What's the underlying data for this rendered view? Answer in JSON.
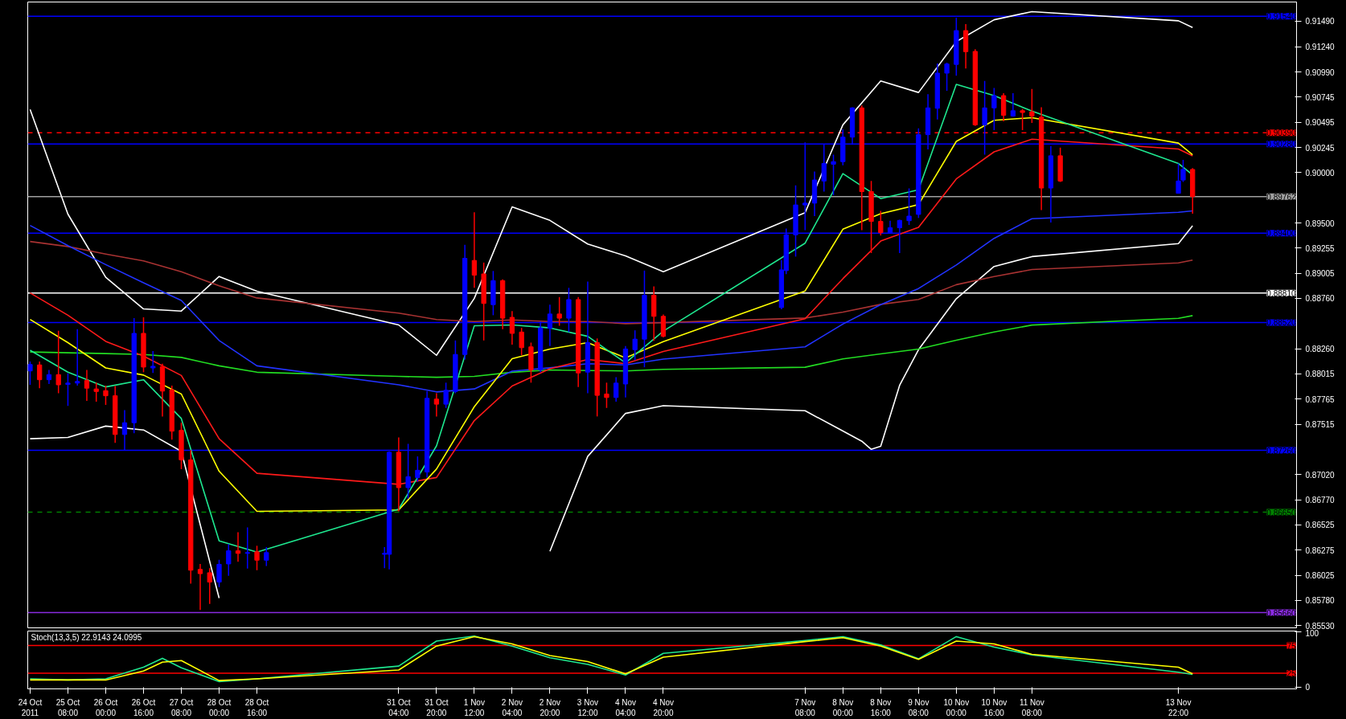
{
  "chart_data": [
    {
      "type": "candlestick",
      "x": [
        "2011-10-24T16:00",
        "2011-10-24T20:00",
        "2011-10-25T00:00",
        "2011-10-25T04:00",
        "2011-10-25T08:00",
        "2011-10-25T12:00",
        "2011-10-25T16:00",
        "2011-10-25T20:00",
        "2011-10-26T00:00",
        "2011-10-26T04:00",
        "2011-10-26T08:00",
        "2011-10-26T12:00",
        "2011-10-26T16:00",
        "2011-10-26T20:00",
        "2011-10-27T00:00",
        "2011-10-27T04:00",
        "2011-10-27T08:00",
        "2011-10-27T12:00",
        "2011-10-27T16:00",
        "2011-10-27T20:00",
        "2011-10-28T00:00",
        "2011-10-28T04:00",
        "2011-10-28T08:00",
        "2011-10-28T12:00",
        "2011-10-28T16:00",
        "2011-10-28T20:00",
        "2011-10-30T22:00",
        "2011-10-31T00:00",
        "2011-10-31T04:00",
        "2011-10-31T08:00",
        "2011-10-31T12:00",
        "2011-10-31T16:00",
        "2011-10-31T20:00",
        "2011-11-01T00:00",
        "2011-11-01T04:00",
        "2011-11-01T08:00",
        "2011-11-01T12:00",
        "2011-11-01T16:00",
        "2011-11-01T20:00",
        "2011-11-02T00:00",
        "2011-11-02T04:00",
        "2011-11-02T08:00",
        "2011-11-02T12:00",
        "2011-11-02T16:00",
        "2011-11-02T20:00",
        "2011-11-03T00:00",
        "2011-11-03T04:00",
        "2011-11-03T08:00",
        "2011-11-03T12:00",
        "2011-11-03T16:00",
        "2011-11-03T20:00",
        "2011-11-04T00:00",
        "2011-11-04T04:00",
        "2011-11-04T08:00",
        "2011-11-04T12:00",
        "2011-11-04T16:00",
        "2011-11-04T20:00",
        "2011-11-06T22:00",
        "2011-11-07T00:00",
        "2011-11-07T04:00",
        "2011-11-07T08:00",
        "2011-11-07T12:00",
        "2011-11-07T16:00",
        "2011-11-07T20:00",
        "2011-11-08T00:00",
        "2011-11-08T04:00",
        "2011-11-08T08:00",
        "2011-11-08T12:00",
        "2011-11-08T16:00",
        "2011-11-08T20:00",
        "2011-11-09T00:00",
        "2011-11-09T04:00",
        "2011-11-09T08:00",
        "2011-11-09T12:00",
        "2011-11-09T16:00",
        "2011-11-09T20:00",
        "2011-11-10T00:00",
        "2011-11-10T04:00",
        "2011-11-10T08:00",
        "2011-11-10T12:00",
        "2011-11-10T16:00",
        "2011-11-10T20:00",
        "2011-11-11T00:00",
        "2011-11-11T04:00",
        "2011-11-11T08:00",
        "2011-11-11T12:00",
        "2011-11-11T16:00",
        "2011-11-11T20:00",
        "2011-11-13T22:00",
        "2011-11-14T00:00",
        "2011-11-14T04:00"
      ],
      "ohlc": [
        [
          0.88043,
          0.88135,
          0.87906,
          0.88106
        ],
        [
          0.88102,
          0.88135,
          0.87873,
          0.87956
        ],
        [
          0.87956,
          0.88052,
          0.87914,
          0.88006
        ],
        [
          0.88006,
          0.88438,
          0.87823,
          0.87906
        ],
        [
          0.8791,
          0.88018,
          0.87698,
          0.87923
        ],
        [
          0.87923,
          0.88455,
          0.87898,
          0.87939
        ],
        [
          0.87948,
          0.88052,
          0.87748,
          0.87873
        ],
        [
          0.87865,
          0.87927,
          0.8774,
          0.8784
        ],
        [
          0.87848,
          0.87898,
          0.87707,
          0.87798
        ],
        [
          0.87798,
          0.87894,
          0.87333,
          0.87416
        ],
        [
          0.87416,
          0.87657,
          0.87262,
          0.87532
        ],
        [
          0.87532,
          0.88563,
          0.87428,
          0.88413
        ],
        [
          0.88413,
          0.88571,
          0.88031,
          0.88081
        ],
        [
          0.88072,
          0.88239,
          0.88023,
          0.88089
        ],
        [
          0.88085,
          0.88114,
          0.87594,
          0.87844
        ],
        [
          0.87856,
          0.87898,
          0.87366,
          0.87449
        ],
        [
          0.87457,
          0.87532,
          0.87075,
          0.87166
        ],
        [
          0.87166,
          0.87262,
          0.85945,
          0.86078
        ],
        [
          0.86086,
          0.8614,
          0.85687,
          0.86044
        ],
        [
          0.86053,
          0.86098,
          0.85745,
          0.85961
        ],
        [
          0.85961,
          0.86181,
          0.85911,
          0.86136
        ],
        [
          0.8614,
          0.86335,
          0.86023,
          0.86269
        ],
        [
          0.86269,
          0.86452,
          0.86161,
          0.86244
        ],
        [
          0.86244,
          0.86501,
          0.86094,
          0.86252
        ],
        [
          0.8626,
          0.86319,
          0.86078,
          0.86177
        ],
        [
          0.86177,
          0.86306,
          0.86119,
          0.86252
        ],
        [
          0.86235,
          0.86306,
          0.86098,
          0.86244
        ],
        [
          0.86235,
          0.8725,
          0.86086,
          0.87241
        ],
        [
          0.87241,
          0.87387,
          0.86659,
          0.86892
        ],
        [
          0.86892,
          0.87324,
          0.86784,
          0.87
        ],
        [
          0.86992,
          0.872,
          0.8695,
          0.87063
        ],
        [
          0.87046,
          0.87844,
          0.86992,
          0.87773
        ],
        [
          0.87765,
          0.87823,
          0.87594,
          0.87715
        ],
        [
          0.87715,
          0.87927,
          0.87678,
          0.87852
        ],
        [
          0.8784,
          0.88343,
          0.87823,
          0.88205
        ],
        [
          0.88205,
          0.89286,
          0.88156,
          0.89153
        ],
        [
          0.89132,
          0.89606,
          0.88862,
          0.88987
        ],
        [
          0.88999,
          0.89111,
          0.88343,
          0.88708
        ],
        [
          0.88696,
          0.89028,
          0.88592,
          0.88933
        ],
        [
          0.88933,
          0.88945,
          0.88455,
          0.88563
        ],
        [
          0.88571,
          0.88633,
          0.88301,
          0.88413
        ],
        [
          0.88426,
          0.88467,
          0.88197,
          0.88272
        ],
        [
          0.8828,
          0.88322,
          0.87927,
          0.88052
        ],
        [
          0.88052,
          0.8853,
          0.88031,
          0.88467
        ],
        [
          0.88463,
          0.88696,
          0.88289,
          0.88604
        ],
        [
          0.88604,
          0.88771,
          0.88488,
          0.88563
        ],
        [
          0.88563,
          0.88862,
          0.88426,
          0.88746
        ],
        [
          0.88746,
          0.88771,
          0.87885,
          0.88023
        ],
        [
          0.88031,
          0.88924,
          0.87823,
          0.88322
        ],
        [
          0.88322,
          0.88363,
          0.87594,
          0.87802
        ],
        [
          0.87815,
          0.87927,
          0.87678,
          0.87781
        ],
        [
          0.87781,
          0.87981,
          0.8774,
          0.87923
        ],
        [
          0.87914,
          0.88289,
          0.87781,
          0.88259
        ],
        [
          0.88252,
          0.88443,
          0.88148,
          0.88356
        ],
        [
          0.88356,
          0.89032,
          0.88079,
          0.88789
        ],
        [
          0.88789,
          0.88876,
          0.88339,
          0.88581
        ],
        [
          0.88581,
          0.88599,
          0.88374,
          0.88384
        ],
        [
          0.88668,
          0.89136,
          0.88651,
          0.89039
        ],
        [
          0.89032,
          0.89447,
          0.88997,
          0.89385
        ],
        [
          0.89385,
          0.89873,
          0.8917,
          0.89679
        ],
        [
          0.89679,
          0.90296,
          0.8943,
          0.89697
        ],
        [
          0.89697,
          0.90009,
          0.89569,
          0.89925
        ],
        [
          0.89915,
          0.90279,
          0.89811,
          0.90088
        ],
        [
          0.90081,
          0.90175,
          0.89776,
          0.90106
        ],
        [
          0.90106,
          0.90424,
          0.90071,
          0.90348
        ],
        [
          0.90348,
          0.90642,
          0.90272,
          0.90636
        ],
        [
          0.90636,
          0.9066,
          0.8943,
          0.89811
        ],
        [
          0.89811,
          0.89915,
          0.89205,
          0.89517
        ],
        [
          0.89517,
          0.89621,
          0.89378,
          0.89406
        ],
        [
          0.89406,
          0.89524,
          0.89395,
          0.89454
        ],
        [
          0.89454,
          0.89534,
          0.89205,
          0.89527
        ],
        [
          0.89524,
          0.89842,
          0.89482,
          0.89569
        ],
        [
          0.89586,
          0.90435,
          0.89551,
          0.90372
        ],
        [
          0.90372,
          0.90771,
          0.90227,
          0.90636
        ],
        [
          0.90632,
          0.91075,
          0.90521,
          0.90979
        ],
        [
          0.90979,
          0.91082,
          0.90805,
          0.91069
        ],
        [
          0.91065,
          0.91526,
          0.90954,
          0.91398
        ],
        [
          0.91398,
          0.91463,
          0.91024,
          0.9119
        ],
        [
          0.91193,
          0.91214,
          0.90459,
          0.90469
        ],
        [
          0.90469,
          0.90902,
          0.90175,
          0.90636
        ],
        [
          0.90636,
          0.90833,
          0.90417,
          0.90757
        ],
        [
          0.90757,
          0.90781,
          0.90504,
          0.90563
        ],
        [
          0.90556,
          0.90781,
          0.90549,
          0.90608
        ],
        [
          0.90608,
          0.90625,
          0.90417,
          0.90591
        ],
        [
          0.90597,
          0.90823,
          0.90487,
          0.90556
        ],
        [
          0.90545,
          0.90642,
          0.89628,
          0.89846
        ],
        [
          0.89846,
          0.90261,
          0.89506,
          0.90164
        ],
        [
          0.90164,
          0.90244,
          0.89905,
          0.89915
        ],
        [
          0.89794,
          0.90088,
          0.89794,
          0.89915
        ],
        [
          0.89925,
          0.90123,
          0.89905,
          0.90029
        ],
        [
          0.90029,
          0.90043,
          0.89593,
          0.89762
        ]
      ],
      "colors": [
        "#0000ff",
        "#ff0000",
        "#0000ff",
        "#ff0000",
        "#0000ff",
        "#0000ff",
        "#ff0000",
        "#ff0000",
        "#ff0000",
        "#ff0000",
        "#0000ff",
        "#0000ff",
        "#ff0000",
        "#0000ff",
        "#ff0000",
        "#ff0000",
        "#ff0000",
        "#ff0000",
        "#ff0000",
        "#ff0000",
        "#0000ff",
        "#0000ff",
        "#ff0000",
        "#0000ff",
        "#ff0000",
        "#0000ff",
        "#0000ff",
        "#0000ff",
        "#ff0000",
        "#0000ff",
        "#0000ff",
        "#0000ff",
        "#ff0000",
        "#0000ff",
        "#0000ff",
        "#0000ff",
        "#ff0000",
        "#ff0000",
        "#0000ff",
        "#ff0000",
        "#ff0000",
        "#ff0000",
        "#ff0000",
        "#0000ff",
        "#0000ff",
        "#ff0000",
        "#0000ff",
        "#ff0000",
        "#0000ff",
        "#ff0000",
        "#ff0000",
        "#0000ff",
        "#0000ff",
        "#0000ff",
        "#0000ff",
        "#ff0000",
        "#ff0000",
        "#0000ff",
        "#0000ff",
        "#0000ff",
        "#0000ff",
        "#0000ff",
        "#0000ff",
        "#0000ff",
        "#0000ff",
        "#0000ff",
        "#ff0000",
        "#ff0000",
        "#ff0000",
        "#0000ff",
        "#0000ff",
        "#0000ff",
        "#0000ff",
        "#0000ff",
        "#0000ff",
        "#0000ff",
        "#0000ff",
        "#ff0000",
        "#ff0000",
        "#0000ff",
        "#0000ff",
        "#ff0000",
        "#0000ff",
        "#ff0000",
        "#ff0000",
        "#ff0000",
        "#0000ff",
        "#ff0000",
        "#0000ff",
        "#0000ff",
        "#ff0000"
      ],
      "series": [
        {
          "type": "line",
          "color": "#ffffff",
          "x": [
            "2011-10-24T16:00",
            "2011-10-25T08:00",
            "2011-10-26T00:00",
            "2011-10-26T16:00",
            "2011-10-27T08:00",
            "2011-10-28T00:00",
            "2011-10-28T16:00",
            "2011-10-31T04:00",
            "2011-10-31T20:00",
            "2011-11-01T12:00",
            "2011-11-02T04:00",
            "2011-11-02T20:00",
            "2011-11-03T12:00",
            "2011-11-04T04:00",
            "2011-11-04T20:00",
            "2011-11-07T08:00",
            "2011-11-08T00:00",
            "2011-11-08T16:00",
            "2011-11-09T08:00",
            "2011-11-10T00:00",
            "2011-11-10T16:00",
            "2011-11-11T08:00",
            "2011-11-13T22:00",
            "2011-11-14T04:00"
          ],
          "values": [
            0.9062,
            0.89589,
            0.88966,
            0.88654,
            0.88633,
            0.88974,
            0.88829,
            0.88496,
            0.88197,
            0.88758,
            0.8966,
            0.89527,
            0.89294,
            0.89177,
            0.89021,
            0.89603,
            0.90469,
            0.90902,
            0.90788,
            0.9129,
            0.91505,
            0.91585,
            0.91495,
            0.91429
          ]
        },
        {
          "type": "line",
          "color": "#ffffff",
          "x": [
            "2011-10-24T16:00",
            "2011-10-25T08:00",
            "2011-10-26T00:00",
            "2011-10-26T16:00",
            "2011-10-27T08:00",
            "2011-10-28T00:00",
            "2011-10-28T16:00",
            "2011-11-02T20:00",
            "2011-11-03T12:00",
            "2011-11-04T04:00",
            "2011-11-04T20:00",
            "2011-11-07T08:00",
            "2011-11-08T00:00",
            "2011-11-08T08:00",
            "2011-11-08T12:00",
            "2011-11-08T16:00",
            "2011-11-09T00:00",
            "2011-11-09T08:00",
            "2011-11-10T00:00",
            "2011-11-10T16:00",
            "2011-11-11T08:00",
            "2011-11-13T22:00",
            "2011-11-14T04:00"
          ],
          "values": [
            0.87374,
            0.87387,
            0.87499,
            0.87461,
            0.8725,
            0.85803,
            null,
            0.86265,
            0.872,
            0.87624,
            0.877,
            0.8765,
            0.8745,
            0.8735,
            0.8727,
            0.873,
            0.879,
            0.88252,
            0.88755,
            0.89073,
            0.8917,
            0.89298,
            0.89475
          ]
        },
        {
          "type": "line",
          "color": "#22dd22",
          "x": [
            "2011-10-24T16:00",
            "2011-10-25T08:00",
            "2011-10-26T00:00",
            "2011-10-26T16:00",
            "2011-10-27T08:00",
            "2011-10-28T00:00",
            "2011-10-28T16:00",
            "2011-10-31T04:00",
            "2011-10-31T20:00",
            "2011-11-01T12:00",
            "2011-11-02T04:00",
            "2011-11-02T20:00",
            "2011-11-03T12:00",
            "2011-11-04T04:00",
            "2011-11-04T20:00",
            "2011-11-07T08:00",
            "2011-11-08T00:00",
            "2011-11-08T16:00",
            "2011-11-09T08:00",
            "2011-11-10T00:00",
            "2011-11-10T16:00",
            "2011-11-11T08:00",
            "2011-11-13T22:00",
            "2011-11-14T04:00"
          ],
          "values": [
            0.8823,
            0.88222,
            0.88214,
            0.88205,
            0.88176,
            0.88093,
            0.8803,
            0.87989,
            0.8798,
            0.87989,
            0.8803,
            0.88052,
            0.88047,
            0.88043,
            0.88058,
            0.88079,
            0.88162,
            0.88211,
            0.88259,
            0.88346,
            0.88426,
            0.88495,
            0.88561,
            0.88588
          ]
        },
        {
          "type": "line",
          "color": "#a83232",
          "x": [
            "2011-10-24T16:00",
            "2011-10-25T08:00",
            "2011-10-26T00:00",
            "2011-10-26T16:00",
            "2011-10-27T08:00",
            "2011-10-28T00:00",
            "2011-10-28T16:00",
            "2011-10-31T04:00",
            "2011-10-31T20:00",
            "2011-11-01T12:00",
            "2011-11-02T04:00",
            "2011-11-02T20:00",
            "2011-11-03T12:00",
            "2011-11-04T04:00",
            "2011-11-04T20:00",
            "2011-11-07T08:00",
            "2011-11-08T00:00",
            "2011-11-08T16:00",
            "2011-11-09T08:00",
            "2011-11-10T00:00",
            "2011-11-10T16:00",
            "2011-11-11T08:00",
            "2011-11-13T22:00",
            "2011-11-14T04:00"
          ],
          "values": [
            0.89319,
            0.89269,
            0.89195,
            0.89128,
            0.8902,
            0.88883,
            0.88762,
            0.88613,
            0.8855,
            0.8853,
            0.88546,
            0.8853,
            0.8853,
            0.88509,
            0.88519,
            0.88564,
            0.88623,
            0.88699,
            0.88748,
            0.88893,
            0.88973,
            0.89042,
            0.89108,
            0.89136
          ]
        },
        {
          "type": "line",
          "color": "#2233ff",
          "x": [
            "2011-10-24T16:00",
            "2011-10-25T08:00",
            "2011-10-26T00:00",
            "2011-10-26T16:00",
            "2011-10-27T08:00",
            "2011-10-28T00:00",
            "2011-10-28T16:00",
            "2011-10-31T04:00",
            "2011-10-31T20:00",
            "2011-11-01T12:00",
            "2011-11-02T04:00",
            "2011-11-02T20:00",
            "2011-11-03T12:00",
            "2011-11-04T04:00",
            "2011-11-04T20:00",
            "2011-11-07T08:00",
            "2011-11-08T00:00",
            "2011-11-08T16:00",
            "2011-11-09T08:00",
            "2011-11-10T00:00",
            "2011-11-10T16:00",
            "2011-11-11T08:00",
            "2011-11-13T22:00",
            "2011-11-14T04:00"
          ],
          "values": [
            0.89477,
            0.89278,
            0.89091,
            0.88912,
            0.88737,
            0.88343,
            0.88093,
            0.87906,
            0.87836,
            0.87865,
            0.8804,
            0.88073,
            0.88114,
            0.88102,
            0.88159,
            0.8828,
            0.88505,
            0.88696,
            0.88855,
            0.89087,
            0.8935,
            0.89544,
            0.89607,
            0.89621
          ]
        },
        {
          "type": "line",
          "color": "#ff1a1a",
          "x": [
            "2011-10-24T16:00",
            "2011-10-25T08:00",
            "2011-10-26T00:00",
            "2011-10-26T16:00",
            "2011-10-27T08:00",
            "2011-10-28T00:00",
            "2011-10-28T16:00",
            "2011-10-31T04:00",
            "2011-10-31T20:00",
            "2011-11-01T12:00",
            "2011-11-02T04:00",
            "2011-11-02T20:00",
            "2011-11-03T12:00",
            "2011-11-04T04:00",
            "2011-11-04T20:00",
            "2011-11-07T08:00",
            "2011-11-08T00:00",
            "2011-11-08T16:00",
            "2011-11-09T08:00",
            "2011-11-10T00:00",
            "2011-11-10T16:00",
            "2011-11-11T08:00",
            "2011-11-13T22:00",
            "2011-11-14T04:00"
          ],
          "values": [
            0.88812,
            0.88592,
            0.88334,
            0.88189,
            0.87998,
            0.87374,
            0.87034,
            0.86925,
            0.86992,
            0.87553,
            0.87894,
            0.88064,
            0.88156,
            0.88114,
            0.88235,
            0.88557,
            0.88952,
            0.89323,
            0.89458,
            0.89936,
            0.90203,
            0.90327,
            0.9023,
            0.90164
          ]
        },
        {
          "type": "line",
          "color": "#ffff00",
          "x": [
            "2011-10-24T16:00",
            "2011-10-25T08:00",
            "2011-10-26T00:00",
            "2011-10-26T16:00",
            "2011-10-27T08:00",
            "2011-10-28T00:00",
            "2011-10-28T16:00",
            "2011-10-31T04:00",
            "2011-10-31T20:00",
            "2011-11-01T12:00",
            "2011-11-02T04:00",
            "2011-11-02T20:00",
            "2011-11-03T12:00",
            "2011-11-04T04:00",
            "2011-11-04T20:00",
            "2011-11-07T08:00",
            "2011-11-08T00:00",
            "2011-11-08T16:00",
            "2011-11-09T08:00",
            "2011-11-10T00:00",
            "2011-11-10T16:00",
            "2011-11-11T08:00",
            "2011-11-13T22:00",
            "2011-11-14T04:00"
          ],
          "values": [
            0.8855,
            0.88322,
            0.88072,
            0.88002,
            0.87815,
            0.87054,
            0.86659,
            0.86672,
            0.87075,
            0.8769,
            0.88164,
            0.88259,
            0.88322,
            0.88172,
            0.88332,
            0.88831,
            0.8944,
            0.89593,
            0.89683,
            0.90306,
            0.90514,
            0.90539,
            0.90289,
            0.90175
          ]
        },
        {
          "type": "line",
          "color": "#1ee890",
          "x": [
            "2011-10-24T16:00",
            "2011-10-25T08:00",
            "2011-10-26T00:00",
            "2011-10-26T16:00",
            "2011-10-27T08:00",
            "2011-10-28T00:00",
            "2011-10-28T16:00",
            "2011-10-31T04:00",
            "2011-10-31T20:00",
            "2011-11-01T12:00",
            "2011-11-02T04:00",
            "2011-11-02T20:00",
            "2011-11-03T12:00",
            "2011-11-04T04:00",
            "2011-11-04T20:00",
            "2011-11-07T08:00",
            "2011-11-08T00:00",
            "2011-11-08T16:00",
            "2011-11-09T08:00",
            "2011-11-10T00:00",
            "2011-11-10T16:00",
            "2011-11-11T08:00",
            "2011-11-13T22:00",
            "2011-11-14T04:00"
          ],
          "values": [
            0.88247,
            0.88031,
            0.87885,
            0.87956,
            0.87574,
            0.86368,
            0.86256,
            0.8668,
            0.87304,
            0.88488,
            0.88496,
            0.88467,
            0.88384,
            0.88122,
            0.88436,
            0.89302,
            0.89988,
            0.89742,
            0.89828,
            0.90868,
            0.90757,
            0.90604,
            0.90088,
            0.89977
          ]
        }
      ],
      "ylim": [
        0.8551,
        0.9168
      ],
      "xlim": [
        "2011-10-24T15:00",
        "2011-11-16T00:00"
      ],
      "yticks": [
        {
          "value": 0.9149,
          "label": "0.91490"
        },
        {
          "value": 0.9124,
          "label": "0.91240"
        },
        {
          "value": 0.9099,
          "label": "0.90990"
        },
        {
          "value": 0.90745,
          "label": "0.90745"
        },
        {
          "value": 0.90495,
          "label": "0.90495"
        },
        {
          "value": 0.90245,
          "label": "0.90245"
        },
        {
          "value": 0.9,
          "label": "0.90000"
        },
        {
          "value": 0.895,
          "label": "0.89500"
        },
        {
          "value": 0.89255,
          "label": "0.89255"
        },
        {
          "value": 0.89005,
          "label": "0.89005"
        },
        {
          "value": 0.8876,
          "label": "0.88760"
        },
        {
          "value": 0.8826,
          "label": "0.88260"
        },
        {
          "value": 0.88015,
          "label": "0.88015"
        },
        {
          "value": 0.87765,
          "label": "0.87765"
        },
        {
          "value": 0.87515,
          "label": "0.87515"
        },
        {
          "value": 0.8702,
          "label": "0.87020"
        },
        {
          "value": 0.8677,
          "label": "0.86770"
        },
        {
          "value": 0.86525,
          "label": "0.86525"
        },
        {
          "value": 0.86275,
          "label": "0.86275"
        },
        {
          "value": 0.86025,
          "label": "0.86025"
        },
        {
          "value": 0.8578,
          "label": "0.85780"
        },
        {
          "value": 0.8553,
          "label": "0.85530"
        }
      ],
      "tick_labels": "y",
      "ref_lines": [
        {
          "axis": "y",
          "value": 0.9154,
          "label": "0.91540",
          "color": "#0000ff"
        },
        {
          "axis": "y",
          "value": 0.9039,
          "label": "0.90390",
          "color": "#ff0000",
          "line_style": "dashed"
        },
        {
          "axis": "y",
          "value": 0.9028,
          "label": "0.90280",
          "color": "#0000ff"
        },
        {
          "axis": "y",
          "value": 0.89762,
          "label": "0.89762",
          "color": "#a0a0a0"
        },
        {
          "axis": "y",
          "value": 0.894,
          "label": "0.89400",
          "color": "#0000ff"
        },
        {
          "axis": "y",
          "value": 0.8881,
          "label": "0.88810",
          "color": "#ffffff"
        },
        {
          "axis": "y",
          "value": 0.8852,
          "label": "0.88520",
          "color": "#0000ff"
        },
        {
          "axis": "y",
          "value": 0.8726,
          "label": "0.87260",
          "color": "#0000ff"
        },
        {
          "axis": "y",
          "value": 0.8665,
          "label": "0.86650",
          "color": "#008000",
          "line_style": "dashed"
        },
        {
          "axis": "y",
          "value": 0.8566,
          "label": "0.85660",
          "color": "#8a2be2"
        }
      ]
    },
    {
      "type": "line",
      "title": "Stoch(13,3,5) 22.9143 24.0995",
      "x": [
        "2011-10-24T16:00",
        "2011-10-25T08:00",
        "2011-10-26T00:00",
        "2011-10-26T16:00",
        "2011-10-27T00:00",
        "2011-10-27T08:00",
        "2011-10-28T00:00",
        "2011-10-28T16:00",
        "2011-10-31T04:00",
        "2011-10-31T20:00",
        "2011-11-01T12:00",
        "2011-11-02T04:00",
        "2011-11-02T20:00",
        "2011-11-03T12:00",
        "2011-11-04T04:00",
        "2011-11-04T20:00",
        "2011-11-07T08:00",
        "2011-11-08T00:00",
        "2011-11-08T16:00",
        "2011-11-09T08:00",
        "2011-11-10T00:00",
        "2011-11-10T16:00",
        "2011-11-11T08:00",
        "2011-11-13T22:00",
        "2011-11-14T04:00"
      ],
      "series": [
        {
          "color": "#1ee890",
          "values": [
            15,
            13,
            15,
            36,
            52,
            35,
            10,
            15,
            38,
            83,
            92,
            74,
            53,
            41,
            22,
            61,
            84,
            91,
            76,
            51,
            91,
            72,
            58,
            27,
            22.9143
          ]
        },
        {
          "color": "#ffff00",
          "values": [
            13,
            13,
            13,
            29,
            45,
            48,
            12,
            15,
            31,
            74,
            91,
            78,
            57,
            46,
            24,
            54,
            82,
            89,
            74,
            50,
            83,
            78,
            59,
            36,
            24.0995
          ]
        }
      ],
      "ylim": [
        -3,
        101
      ],
      "xlim": [
        "2011-10-24T15:00",
        "2011-11-16T00:00"
      ],
      "yticks": [
        0,
        100
      ],
      "xticks": [
        {
          "value": "2011-10-24T16:00",
          "label": "24 Oct 2011"
        },
        {
          "value": "2011-10-25T08:00",
          "label": "25 Oct 08:00"
        },
        {
          "value": "2011-10-26T00:00",
          "label": "26 Oct 00:00"
        },
        {
          "value": "2011-10-26T16:00",
          "label": "26 Oct 16:00"
        },
        {
          "value": "2011-10-27T08:00",
          "label": "27 Oct 08:00"
        },
        {
          "value": "2011-10-28T00:00",
          "label": "28 Oct 00:00"
        },
        {
          "value": "2011-10-28T16:00",
          "label": "28 Oct 16:00"
        },
        {
          "value": "2011-10-31T04:00",
          "label": "31 Oct 04:00"
        },
        {
          "value": "2011-10-31T20:00",
          "label": "31 Oct 20:00"
        },
        {
          "value": "2011-11-01T12:00",
          "label": "1 Nov 12:00"
        },
        {
          "value": "2011-11-02T04:00",
          "label": "2 Nov 04:00"
        },
        {
          "value": "2011-11-02T20:00",
          "label": "2 Nov 20:00"
        },
        {
          "value": "2011-11-03T12:00",
          "label": "3 Nov 12:00"
        },
        {
          "value": "2011-11-04T04:00",
          "label": "4 Nov 04:00"
        },
        {
          "value": "2011-11-04T20:00",
          "label": "4 Nov 20:00"
        },
        {
          "value": "2011-11-07T08:00",
          "label": "7 Nov 08:00"
        },
        {
          "value": "2011-11-08T00:00",
          "label": "8 Nov 00:00"
        },
        {
          "value": "2011-11-08T16:00",
          "label": "8 Nov 16:00"
        },
        {
          "value": "2011-11-09T08:00",
          "label": "9 Nov 08:00"
        },
        {
          "value": "2011-11-10T00:00",
          "label": "10 Nov 00:00"
        },
        {
          "value": "2011-11-10T16:00",
          "label": "10 Nov 16:00"
        },
        {
          "value": "2011-11-11T08:00",
          "label": "11 Nov 08:00"
        },
        {
          "value": "2011-11-13T22:00",
          "label": "13 Nov 22:00"
        }
      ],
      "ref_lines": [
        {
          "axis": "y",
          "value": 75,
          "label": "75",
          "color": "#ff0000"
        },
        {
          "axis": "y",
          "value": 25,
          "label": "25",
          "color": "#ff0000"
        }
      ]
    }
  ]
}
